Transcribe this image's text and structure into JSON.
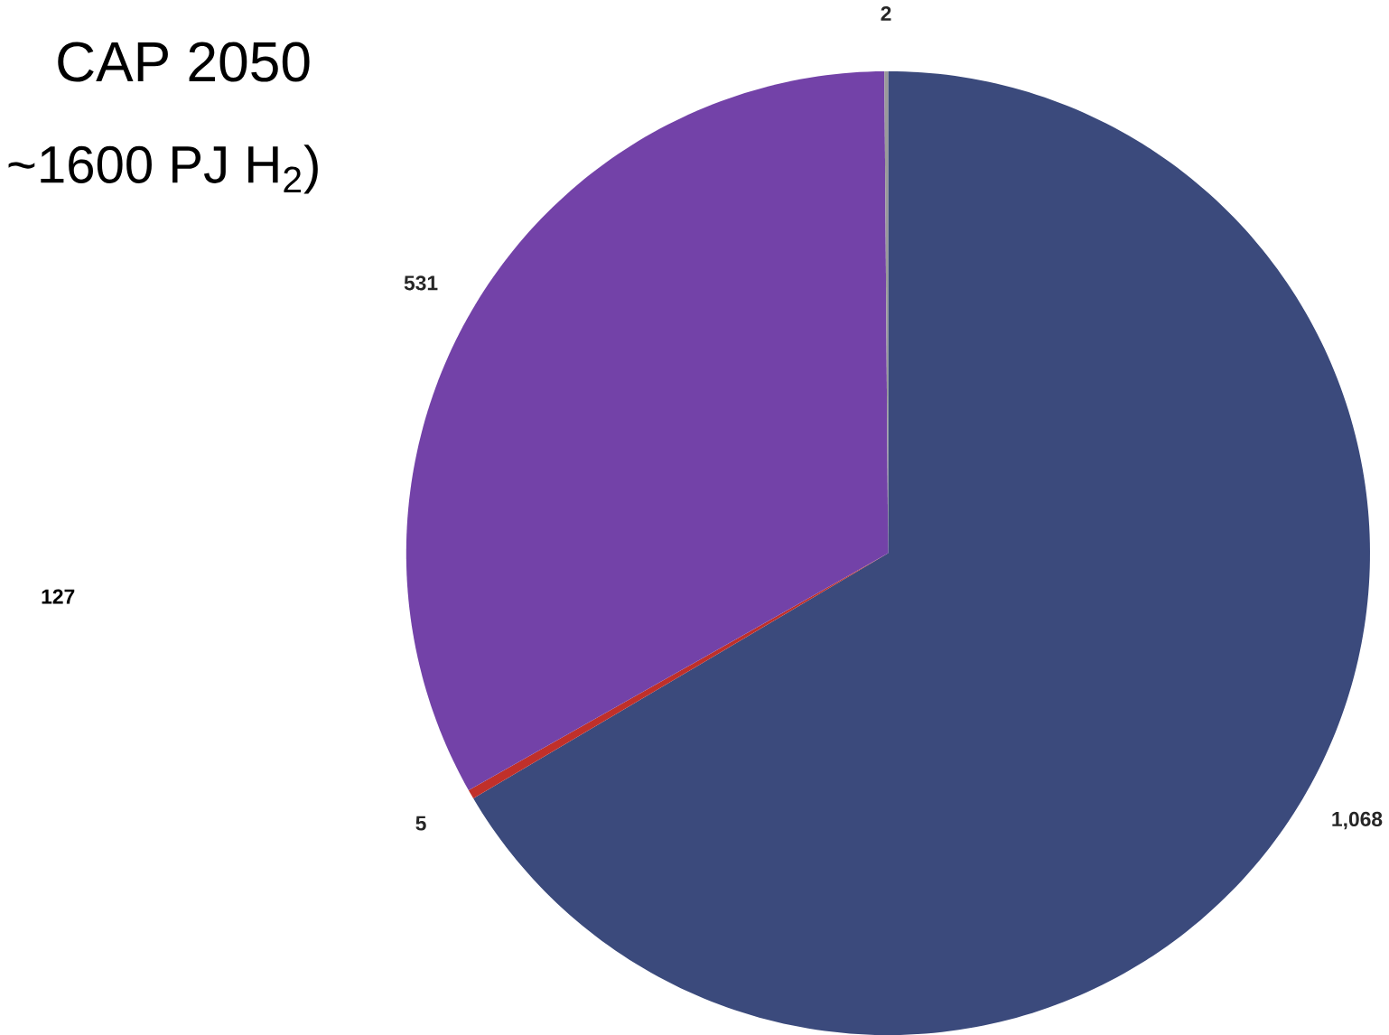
{
  "chart_data": {
    "type": "pie",
    "title": "CAP 2050",
    "subtitle": "~1600 PJ H$_{2}$)",
    "categories": [
      null,
      null,
      null,
      null
    ],
    "values": [
      1068,
      5,
      531,
      2
    ],
    "colors": [
      "#3b4a7c",
      "#c0302a",
      "#7342a8",
      "#9a9a9a"
    ],
    "value_labels": [
      "1,068",
      "5",
      "531",
      "2"
    ],
    "annotations": [
      "127"
    ]
  }
}
